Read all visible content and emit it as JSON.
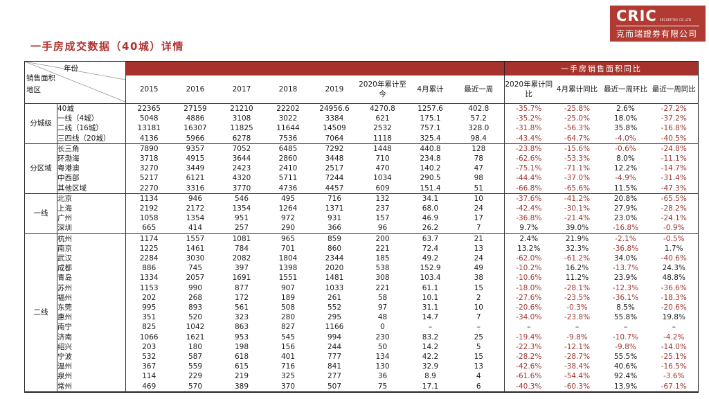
{
  "logo": {
    "name": "CRIC",
    "subtitle": "SECURITIES CO.,LTD",
    "company": "克而瑞證券有限公司"
  },
  "title": "一手房成交数据（40城）详情",
  "colors": {
    "brand_red": "#a5322b",
    "logo_red": "#b13a32",
    "negative_value_red": "#a03833"
  },
  "table": {
    "corner": {
      "year": "年份",
      "measure": "销售面积",
      "region": "地区"
    },
    "year_cols": [
      "2015",
      "2016",
      "2017",
      "2018",
      "2019",
      "2020年累计至今",
      "4月累计",
      "最近一周"
    ],
    "yoy_banner": "一手房销售面积同比",
    "yoy_cols": [
      "2020年累计同比",
      "4月累计同比",
      "最近一周环比",
      "最近一周同比"
    ],
    "groups": [
      {
        "label": "分城级",
        "rows": [
          {
            "name": "40城",
            "values": [
              "22365",
              "27159",
              "21210",
              "22202",
              "24956.6",
              "4270.8",
              "1257.6",
              "402.8"
            ],
            "yoy": [
              "-35.7%",
              "-25.8%",
              "2.6%",
              "-27.2%"
            ]
          },
          {
            "name": "一线（4城）",
            "values": [
              "5048",
              "4886",
              "3108",
              "3022",
              "3384",
              "621",
              "175.1",
              "57.2"
            ],
            "yoy": [
              "-35.2%",
              "-25.0%",
              "18.0%",
              "-37.2%"
            ]
          },
          {
            "name": "二线（16城）",
            "values": [
              "13181",
              "16307",
              "11825",
              "11644",
              "14509",
              "2532",
              "757.1",
              "328.0"
            ],
            "yoy": [
              "-31.8%",
              "-56.3%",
              "35.8%",
              "-16.8%"
            ]
          },
          {
            "name": "三四线（20城）",
            "values": [
              "4136",
              "5966",
              "6278",
              "7536",
              "7064",
              "1118",
              "325.4",
              "98.4"
            ],
            "yoy": [
              "-43.4%",
              "-64.7%",
              "-4.0%",
              "-40.5%"
            ]
          }
        ]
      },
      {
        "label": "分区域",
        "rows": [
          {
            "name": "长三角",
            "values": [
              "7890",
              "9357",
              "7052",
              "6485",
              "7292",
              "1448",
              "440.8",
              "128"
            ],
            "yoy": [
              "-23.8%",
              "-15.6%",
              "-0.6%",
              "-24.8%"
            ]
          },
          {
            "name": "环渤海",
            "values": [
              "3718",
              "4915",
              "3644",
              "2860",
              "3448",
              "710",
              "234.8",
              "78"
            ],
            "yoy": [
              "-62.6%",
              "-53.3%",
              "8.0%",
              "-11.1%"
            ]
          },
          {
            "name": "粤港澳",
            "values": [
              "3270",
              "3449",
              "2423",
              "2410",
              "2517",
              "470",
              "140.2",
              "47"
            ],
            "yoy": [
              "-75.1%",
              "-71.1%",
              "12.2%",
              "-14.7%"
            ]
          },
          {
            "name": "中西部",
            "values": [
              "5217",
              "6121",
              "4320",
              "5711",
              "7244",
              "1034",
              "290.5",
              "98"
            ],
            "yoy": [
              "-44.4%",
              "-37.0%",
              "-4.9%",
              "-31.4%"
            ]
          },
          {
            "name": "其他区域",
            "values": [
              "2270",
              "3316",
              "3770",
              "4736",
              "4457",
              "609",
              "151.4",
              "51"
            ],
            "yoy": [
              "-66.8%",
              "-65.6%",
              "11.5%",
              "-47.3%"
            ]
          }
        ]
      },
      {
        "label": "一线",
        "rows": [
          {
            "name": "北京",
            "values": [
              "1134",
              "946",
              "546",
              "495",
              "716",
              "132",
              "34.1",
              "10"
            ],
            "yoy": [
              "-37.6%",
              "-41.2%",
              "20.8%",
              "-65.5%"
            ]
          },
          {
            "name": "上海",
            "values": [
              "2192",
              "2172",
              "1354",
              "1264",
              "1371",
              "237",
              "68.0",
              "24"
            ],
            "yoy": [
              "-42.4%",
              "-30.1%",
              "27.9%",
              "-28.2%"
            ]
          },
          {
            "name": "广州",
            "values": [
              "1058",
              "1354",
              "951",
              "972",
              "931",
              "157",
              "46.9",
              "17"
            ],
            "yoy": [
              "-36.8%",
              "-21.4%",
              "23.0%",
              "-24.1%"
            ]
          },
          {
            "name": "深圳",
            "values": [
              "665",
              "414",
              "257",
              "290",
              "366",
              "96",
              "26.2",
              "7"
            ],
            "yoy": [
              "9.7%",
              "39.0%",
              "-16.8%",
              "-0.9%"
            ]
          }
        ]
      },
      {
        "label": "二线",
        "rows": [
          {
            "name": "杭州",
            "values": [
              "1174",
              "1557",
              "1081",
              "965",
              "859",
              "200",
              "63.7",
              "21"
            ],
            "yoy": [
              "2.4%",
              "21.9%",
              "-2.1%",
              "-0.5%"
            ]
          },
          {
            "name": "南京",
            "values": [
              "1225",
              "1461",
              "784",
              "701",
              "860",
              "221",
              "72.4",
              "13"
            ],
            "yoy": [
              "13.2%",
              "32.3%",
              "-36.8%",
              "1.7%"
            ]
          },
          {
            "name": "武汉",
            "values": [
              "2284",
              "3030",
              "2082",
              "1804",
              "2344",
              "185",
              "49.2",
              "24"
            ],
            "yoy": [
              "-62.0%",
              "-61.2%",
              "34.0%",
              "-40.6%"
            ]
          },
          {
            "name": "成都",
            "values": [
              "886",
              "745",
              "397",
              "1398",
              "2020",
              "538",
              "152.9",
              "49"
            ],
            "yoy": [
              "-10.2%",
              "16.2%",
              "-13.7%",
              "24.3%"
            ]
          },
          {
            "name": "青岛",
            "values": [
              "1334",
              "2057",
              "1691",
              "1551",
              "1481",
              "308",
              "103.4",
              "38"
            ],
            "yoy": [
              "-10.6%",
              "11.2%",
              "23.9%",
              "48.8%"
            ]
          },
          {
            "name": "苏州",
            "values": [
              "1153",
              "990",
              "877",
              "907",
              "1033",
              "221",
              "61.1",
              "15"
            ],
            "yoy": [
              "-18.0%",
              "-28.1%",
              "-12.3%",
              "-36.6%"
            ]
          },
          {
            "name": "福州",
            "values": [
              "202",
              "268",
              "172",
              "189",
              "261",
              "58",
              "10.1",
              "2"
            ],
            "yoy": [
              "-27.6%",
              "-23.5%",
              "-36.1%",
              "-18.3%"
            ]
          },
          {
            "name": "东莞",
            "values": [
              "995",
              "893",
              "561",
              "508",
              "552",
              "97",
              "31.1",
              "10"
            ],
            "yoy": [
              "-20.6%",
              "-0.3%",
              "8.5%",
              "-20.6%"
            ]
          },
          {
            "name": "惠州",
            "values": [
              "351",
              "520",
              "323",
              "280",
              "295",
              "48",
              "14.7",
              "7"
            ],
            "yoy": [
              "-34.0%",
              "-23.8%",
              "55.8%",
              "19.8%"
            ]
          },
          {
            "name": "南宁",
            "values": [
              "825",
              "1042",
              "863",
              "827",
              "1166",
              "0",
              "–",
              "–"
            ],
            "yoy": [
              "–",
              "–",
              "–",
              "–"
            ]
          },
          {
            "name": "济南",
            "values": [
              "1066",
              "1621",
              "953",
              "545",
              "994",
              "230",
              "83.2",
              "25"
            ],
            "yoy": [
              "-19.4%",
              "-9.8%",
              "-10.7%",
              "-4.2%"
            ]
          },
          {
            "name": "绍兴",
            "values": [
              "203",
              "180",
              "198",
              "156",
              "244",
              "50",
              "14.2",
              "5"
            ],
            "yoy": [
              "-22.3%",
              "-12.1%",
              "-9.8%",
              "-14.0%"
            ]
          },
          {
            "name": "宁波",
            "values": [
              "532",
              "587",
              "618",
              "401",
              "777",
              "134",
              "42.2",
              "15"
            ],
            "yoy": [
              "-28.2%",
              "-28.7%",
              "55.5%",
              "-25.1%"
            ]
          },
          {
            "name": "温州",
            "values": [
              "367",
              "559",
              "615",
              "716",
              "841",
              "130",
              "32.9",
              "13"
            ],
            "yoy": [
              "-42.6%",
              "-38.4%",
              "40.6%",
              "-16.5%"
            ]
          },
          {
            "name": "泉州",
            "values": [
              "114",
              "229",
              "219",
              "325",
              "277",
              "36",
              "8.9",
              "4"
            ],
            "yoy": [
              "-61.6%",
              "-54.4%",
              "92.4%",
              "-3.6%"
            ]
          },
          {
            "name": "常州",
            "values": [
              "469",
              "570",
              "389",
              "370",
              "507",
              "75",
              "17.1",
              "6"
            ],
            "yoy": [
              "-40.3%",
              "-60.3%",
              "13.9%",
              "-67.1%"
            ]
          }
        ]
      }
    ]
  }
}
